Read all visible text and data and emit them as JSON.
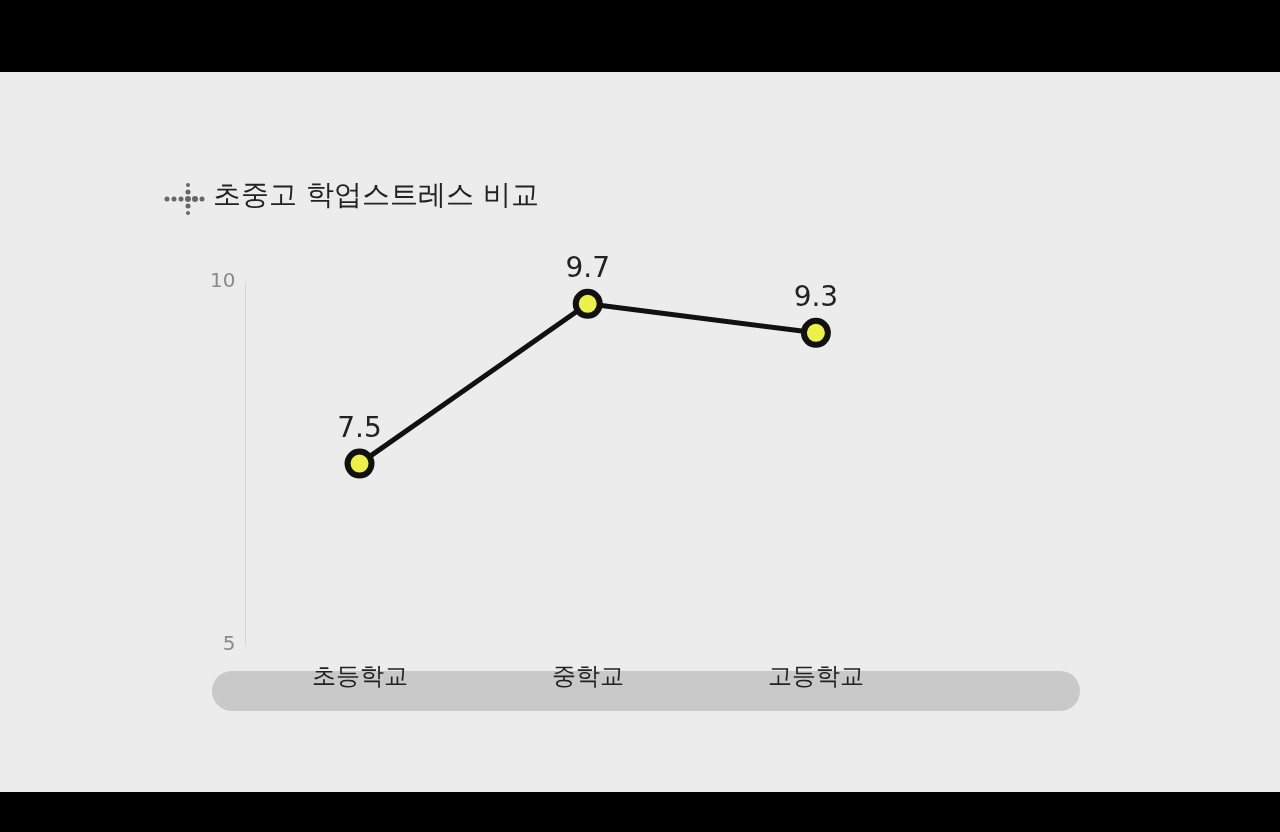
{
  "chart_data": {
    "type": "line",
    "title": "초중고 학업스트레스 비교",
    "categories": [
      "초등학교",
      "중학교",
      "고등학교"
    ],
    "series": [
      {
        "color": "#111111",
        "values": [
          7.5,
          9.7,
          9.3
        ]
      }
    ],
    "ylim": [
      5,
      10
    ],
    "yticks": [
      5,
      10
    ],
    "grid": false,
    "legend": false,
    "marker": "circle",
    "data_labels": true
  }
}
